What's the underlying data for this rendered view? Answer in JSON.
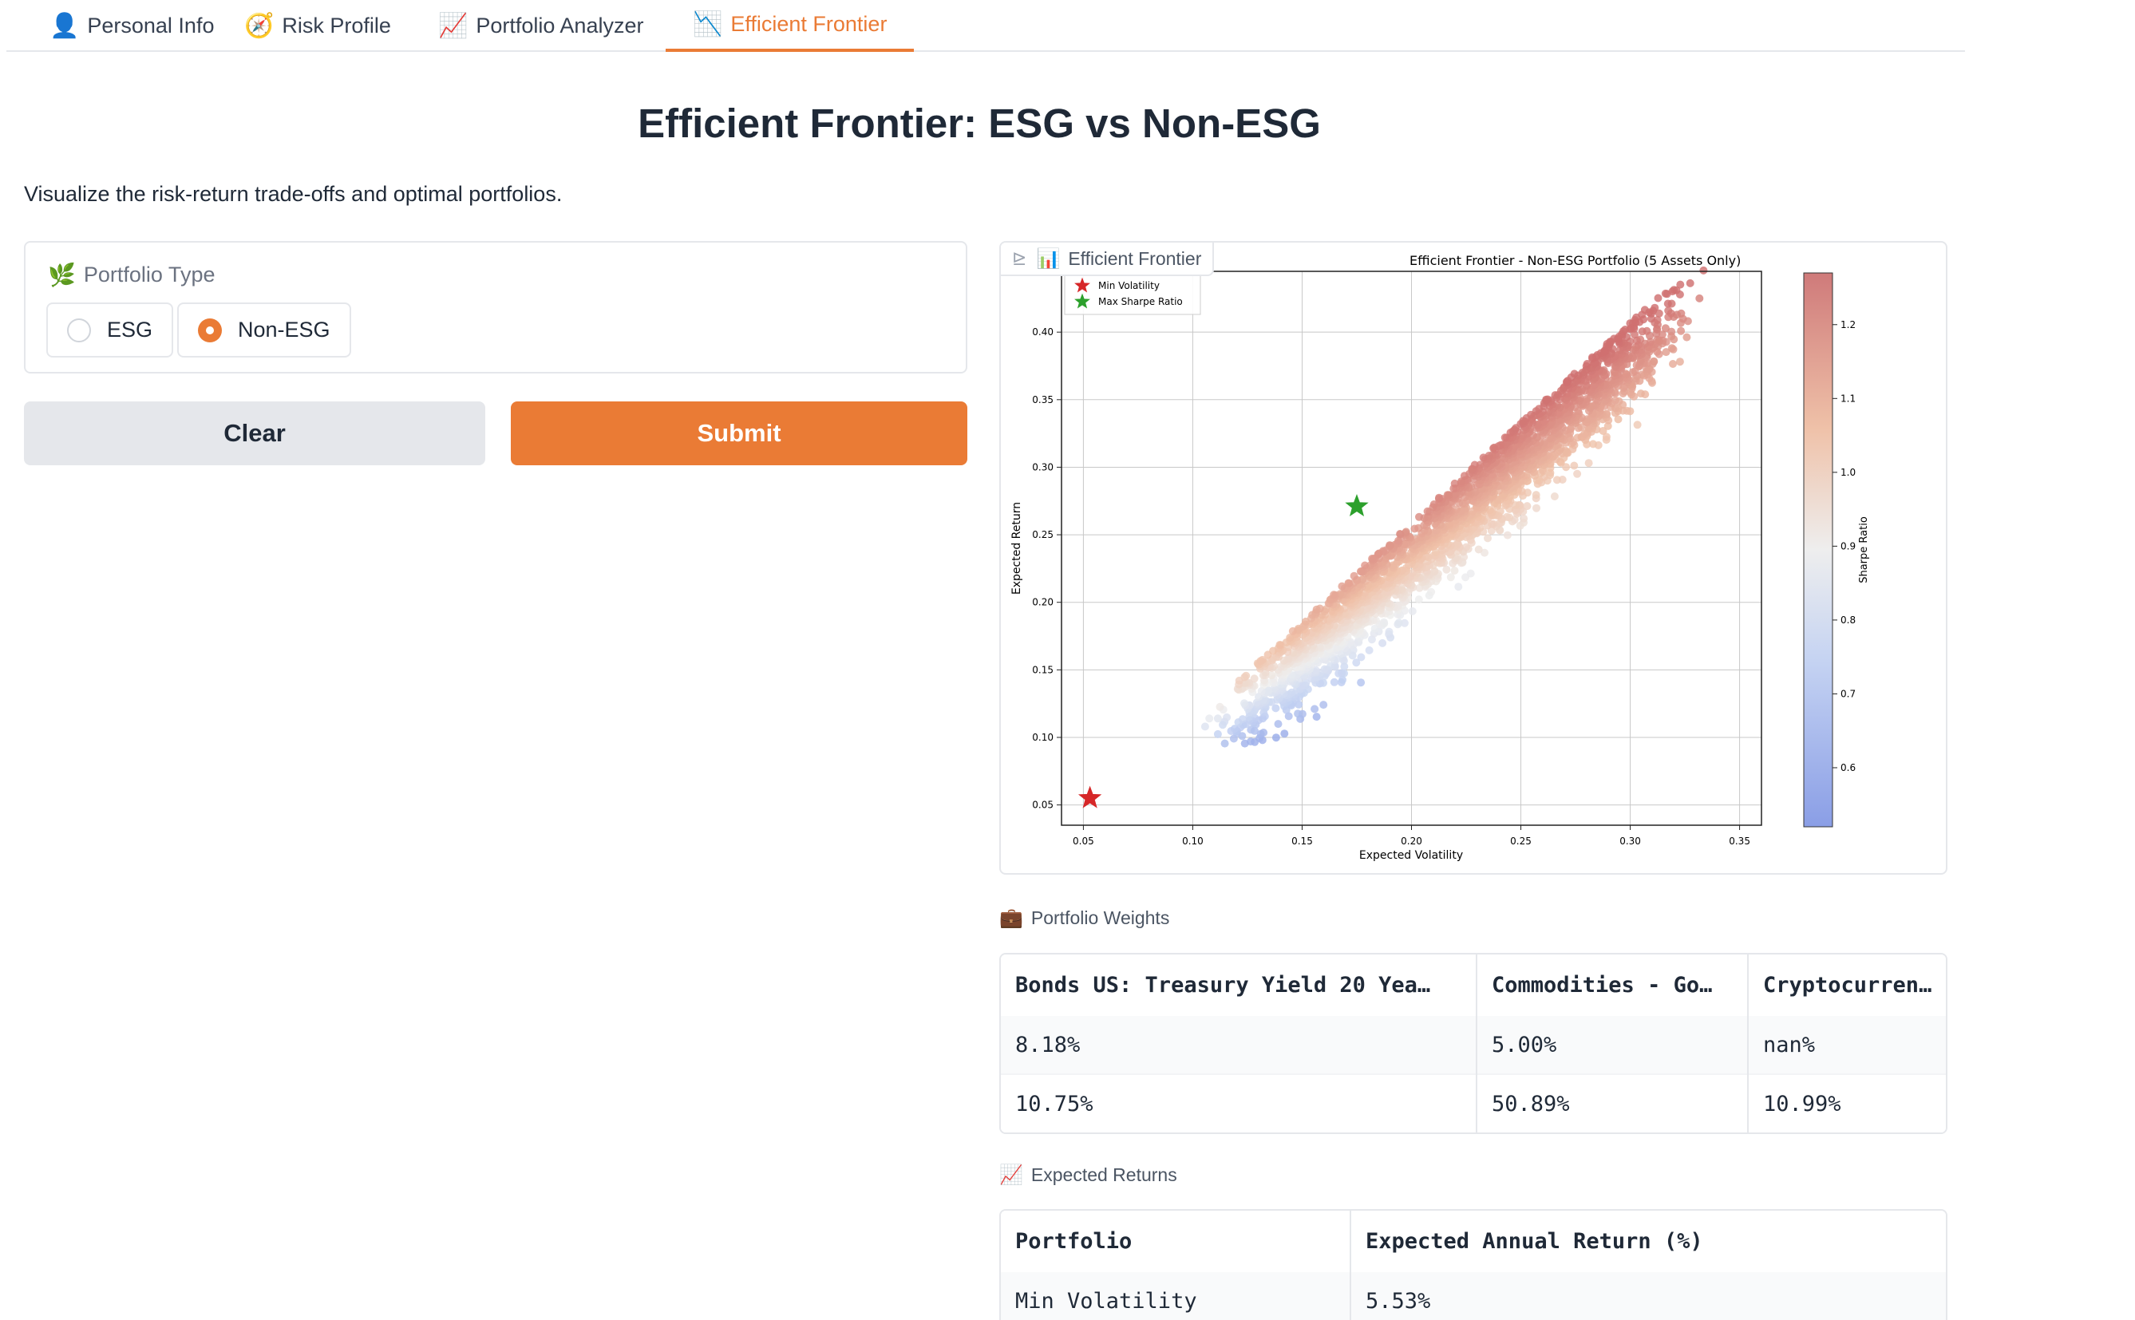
{
  "tabs": [
    {
      "label": "Personal Info",
      "icon": "👤"
    },
    {
      "label": "Risk Profile",
      "icon": "🧭"
    },
    {
      "label": "Portfolio Analyzer",
      "icon": "📈"
    },
    {
      "label": "Efficient Frontier",
      "icon": "📉"
    }
  ],
  "page": {
    "title": "Efficient Frontier: ESG vs Non-ESG",
    "subtitle": "Visualize the risk-return trade-offs and optimal portfolios."
  },
  "portfolio_type": {
    "label": "Portfolio Type",
    "icon": "🌿",
    "options": [
      "ESG",
      "Non-ESG"
    ],
    "selected": "Non-ESG"
  },
  "buttons": {
    "clear": "Clear",
    "submit": "Submit"
  },
  "plot": {
    "label": "Efficient Frontier",
    "label_icon": "📊"
  },
  "chart_data": {
    "type": "scatter",
    "title": "Efficient Frontier - Non-ESG Portfolio (5 Assets Only)",
    "xlabel": "Expected Volatility",
    "ylabel": "Expected Return",
    "xlim": [
      0.04,
      0.36
    ],
    "ylim": [
      0.035,
      0.445
    ],
    "xticks": [
      "0.05",
      "0.10",
      "0.15",
      "0.20",
      "0.25",
      "0.30",
      "0.35"
    ],
    "yticks": [
      "0.05",
      "0.10",
      "0.15",
      "0.20",
      "0.25",
      "0.30",
      "0.35",
      "0.40"
    ],
    "grid": true,
    "colorbar": {
      "label": "Sharpe Ratio",
      "min": 0.52,
      "max": 1.27,
      "ticks": [
        "0.6",
        "0.7",
        "0.8",
        "0.9",
        "1.0",
        "1.1",
        "1.2"
      ]
    },
    "legend": [
      "Min Volatility",
      "Max Sharpe Ratio"
    ],
    "legend_placement": "top-left",
    "markers": [
      {
        "name": "Min Volatility",
        "x": 0.053,
        "y": 0.055,
        "color": "#d62728"
      },
      {
        "name": "Max Sharpe Ratio",
        "x": 0.175,
        "y": 0.271,
        "color": "#2ca02c"
      }
    ],
    "cloud": {
      "n_points": 2600,
      "x_range": [
        0.125,
        0.345
      ],
      "slope": 1.48,
      "intercept": -0.065,
      "spread": 0.018
    }
  },
  "weights": {
    "label": "Portfolio Weights",
    "icon": "💼",
    "headers": [
      "Bonds US: Treasury Yield 20 Yea…",
      "Commodities - Go…",
      "Cryptocurrency"
    ],
    "rows": [
      [
        "8.18%",
        "5.00%",
        "nan%"
      ],
      [
        "10.75%",
        "50.89%",
        "10.99%"
      ]
    ]
  },
  "returns": {
    "label": "Expected Returns",
    "icon": "📈",
    "headers": [
      "Portfolio",
      "Expected Annual Return (%)"
    ],
    "rows": [
      [
        "Min Volatility",
        "5.53%"
      ]
    ]
  }
}
